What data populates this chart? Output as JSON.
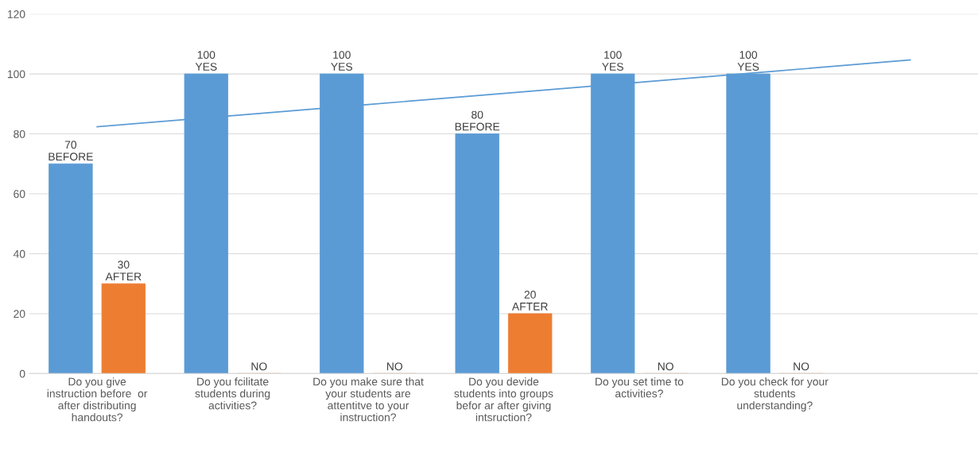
{
  "chart_data": {
    "type": "bar",
    "categories": [
      "Do you give\ninstruction before  or\nafter distributing\nhandouts?",
      "Do you fcilitate\nstudents during\nactivities?",
      "Do you make sure that\nyour students are\nattentitve to your\ninstruction?",
      "Do you devide\nstudents into groups\nbefor ar after giving\nintsruction?",
      "Do you set time to\nactivities?",
      "Do you check for your\nstudents\nunderstanding?",
      null
    ],
    "series": [
      {
        "color": "#5b9bd5",
        "values": [
          70,
          100,
          100,
          80,
          100,
          100,
          null
        ],
        "value_labels": [
          "70\nBEFORE",
          "100\nYES",
          "100\nYES",
          "80\nBEFORE",
          "100\nYES",
          "100\nYES",
          null
        ]
      },
      {
        "color": "#ed7d31",
        "values": [
          30,
          0,
          0,
          20,
          0,
          0,
          null
        ],
        "value_labels": [
          "30\nAFTER",
          "NO",
          "NO",
          "20\nAFTER",
          "NO",
          "NO",
          null
        ]
      },
      {
        "type": "line",
        "color": "#5b9bd5",
        "values": [
          82.4,
          86.1,
          89.8,
          93.5,
          97.2,
          100.9,
          104.7
        ]
      }
    ],
    "ylim": [
      0,
      120
    ],
    "yticks": [
      0,
      20,
      40,
      60,
      80,
      100,
      120
    ],
    "grid": "y",
    "legend": false
  }
}
